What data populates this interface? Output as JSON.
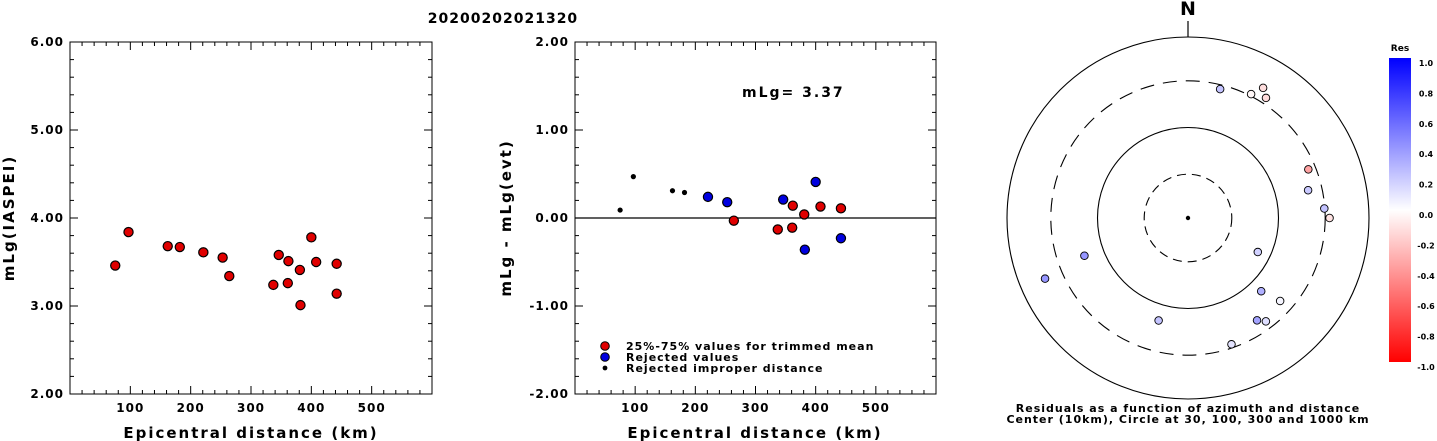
{
  "page": {
    "title": "20200202021320"
  },
  "chart_data": [
    {
      "type": "scatter",
      "name": "left",
      "xlabel": "Epicentral distance (km)",
      "ylabel": "mLg(IASPEI)",
      "xlim": [
        0,
        600
      ],
      "ylim": [
        2.0,
        6.0
      ],
      "xticks": [
        100,
        200,
        300,
        400,
        500
      ],
      "xtick_labels": [
        "100",
        "200",
        "300",
        "400",
        "500"
      ],
      "yticks": [
        2.0,
        3.0,
        4.0,
        5.0,
        6.0
      ],
      "ytick_labels": [
        "2.00",
        "3.00",
        "4.00",
        "5.00",
        "6.00"
      ],
      "series": [
        {
          "color": "#e00000",
          "points": [
            [
              75,
              3.46
            ],
            [
              97,
              3.84
            ],
            [
              162,
              3.68
            ],
            [
              182,
              3.67
            ],
            [
              221,
              3.61
            ],
            [
              253,
              3.55
            ],
            [
              264,
              3.34
            ],
            [
              337,
              3.24
            ],
            [
              346,
              3.58
            ],
            [
              361,
              3.26
            ],
            [
              362,
              3.51
            ],
            [
              381,
              3.41
            ],
            [
              382,
              3.01
            ],
            [
              400,
              3.78
            ],
            [
              408,
              3.5
            ],
            [
              442,
              3.48
            ],
            [
              442,
              3.14
            ]
          ]
        }
      ]
    },
    {
      "type": "scatter",
      "name": "middle",
      "xlabel": "Epicentral distance (km)",
      "ylabel": "mLg - mLg(evt)",
      "xlim": [
        0,
        600
      ],
      "ylim": [
        -2.0,
        2.0
      ],
      "xticks": [
        100,
        200,
        300,
        400,
        500
      ],
      "xtick_labels": [
        "100",
        "200",
        "300",
        "400",
        "500"
      ],
      "yticks": [
        -2.0,
        -1.0,
        0.0,
        1.0,
        2.0
      ],
      "ytick_labels": [
        "-2.00",
        "-1.00",
        "0.00",
        "1.00",
        "2.00"
      ],
      "annotation": "mLg= 3.37",
      "reference_line": 0.0,
      "legend": [
        {
          "label": "25%-75% values for trimmed mean",
          "color": "#e00000",
          "marker": "large"
        },
        {
          "label": "Rejected values",
          "color": "#0000e0",
          "marker": "large"
        },
        {
          "label": "Rejected improper distance",
          "color": "#000000",
          "marker": "small"
        }
      ],
      "series": [
        {
          "label_ref": 0,
          "color": "#e00000",
          "marker": "large",
          "points": [
            [
              264,
              -0.03
            ],
            [
              337,
              -0.13
            ],
            [
              361,
              -0.11
            ],
            [
              362,
              0.14
            ],
            [
              381,
              0.04
            ],
            [
              408,
              0.13
            ],
            [
              442,
              0.11
            ]
          ]
        },
        {
          "label_ref": 1,
          "color": "#0000e0",
          "marker": "large",
          "points": [
            [
              221,
              0.24
            ],
            [
              253,
              0.18
            ],
            [
              346,
              0.21
            ],
            [
              382,
              -0.36
            ],
            [
              400,
              0.41
            ],
            [
              442,
              -0.23
            ]
          ]
        },
        {
          "label_ref": 2,
          "color": "#000000",
          "marker": "small",
          "points": [
            [
              75,
              0.09
            ],
            [
              97,
              0.47
            ],
            [
              162,
              0.31
            ],
            [
              182,
              0.29
            ]
          ]
        }
      ]
    },
    {
      "type": "polar",
      "name": "azimuth",
      "north_label": "N",
      "caption_lines": [
        "Residuals as a function of azimuth and distance",
        "Center (10km), Circle at 30, 100, 300 and 1000 km"
      ],
      "rings_km": [
        30,
        100,
        300,
        1000
      ],
      "rings_dashed": [
        true,
        false,
        true,
        false
      ],
      "ring_fractions": [
        0.242,
        0.5,
        0.758,
        1.0
      ],
      "points": [
        {
          "azimuth": 14,
          "fraction": 0.734,
          "residual": 0.23
        },
        {
          "azimuth": 27,
          "fraction": 0.768,
          "residual": -0.03
        },
        {
          "azimuth": 30,
          "fraction": 0.83,
          "residual": -0.13
        },
        {
          "azimuth": 33,
          "fraction": 0.791,
          "residual": -0.14
        },
        {
          "azimuth": 68,
          "fraction": 0.717,
          "residual": -0.36
        },
        {
          "azimuth": 77,
          "fraction": 0.681,
          "residual": 0.21
        },
        {
          "azimuth": 86,
          "fraction": 0.755,
          "residual": 0.24
        },
        {
          "azimuth": 90,
          "fraction": 0.782,
          "residual": -0.11
        },
        {
          "azimuth": 116,
          "fraction": 0.429,
          "residual": 0.18
        },
        {
          "azimuth": 135,
          "fraction": 0.572,
          "residual": 0.31
        },
        {
          "azimuth": 132,
          "fraction": 0.685,
          "residual": 0.04
        },
        {
          "azimuth": 143,
          "fraction": 0.715,
          "residual": 0.13
        },
        {
          "azimuth": 146,
          "fraction": 0.682,
          "residual": 0.36
        },
        {
          "azimuth": 161,
          "fraction": 0.738,
          "residual": 0.11
        },
        {
          "azimuth": 196,
          "fraction": 0.589,
          "residual": 0.23
        },
        {
          "azimuth": 247,
          "fraction": 0.858,
          "residual": 0.41
        },
        {
          "azimuth": 250,
          "fraction": 0.609,
          "residual": 0.41
        }
      ]
    },
    {
      "type": "colorbar",
      "name": "residual-scale",
      "title": "Res",
      "range": [
        -1.0,
        1.0
      ],
      "tick_values": [
        1.0,
        0.8,
        0.6,
        0.4,
        0.2,
        0.0,
        -0.2,
        -0.4,
        -0.6,
        -0.8,
        -1.0
      ],
      "tick_labels": [
        "1.0",
        "0.8",
        "0.6",
        "0.4",
        "0.2",
        "0.0",
        "-0.2",
        "-0.4",
        "-0.6",
        "-0.8",
        "-1.0"
      ],
      "positive_color": "#0000ff",
      "negative_color": "#ff0000"
    }
  ]
}
